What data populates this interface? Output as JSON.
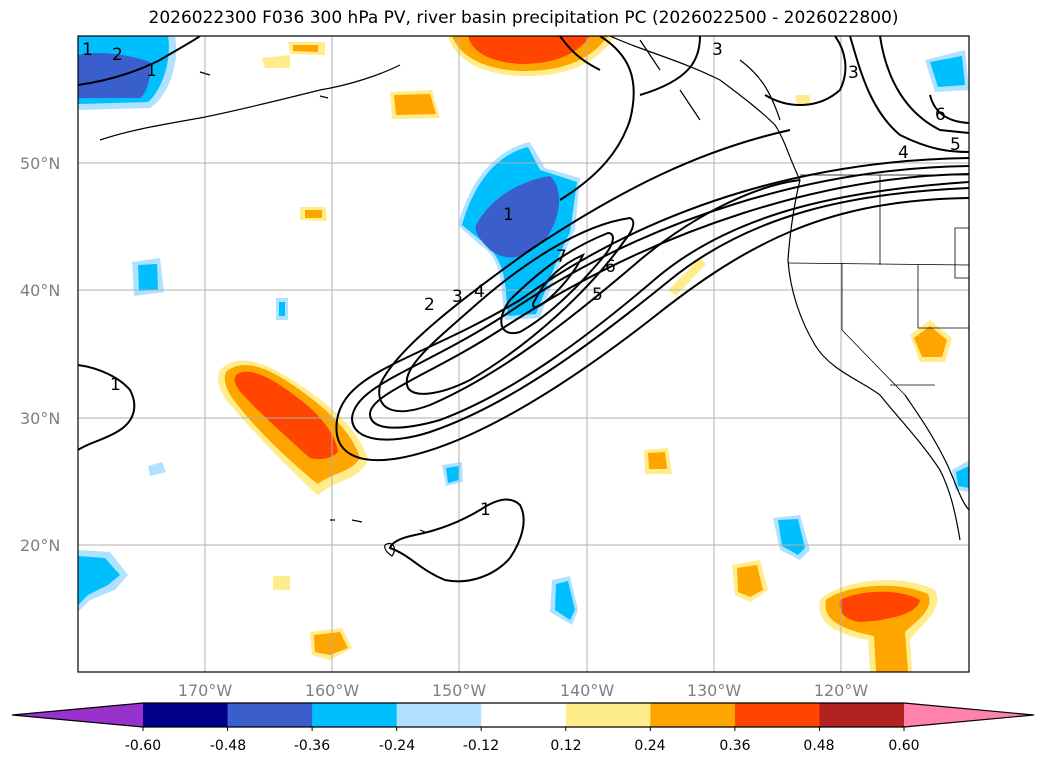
{
  "title": "2026022300 F036 300 hPa PV, river basin precipitation PC (2026022500 - 2026022800)",
  "lat_labels": [
    "50°N",
    "40°N",
    "30°N",
    "20°N"
  ],
  "lon_labels": [
    "170°W",
    "160°W",
    "150°W",
    "140°W",
    "130°W",
    "120°W"
  ],
  "contour_labels": [
    "1",
    "2",
    "3",
    "1",
    "2",
    "3",
    "4",
    "5",
    "6",
    "7",
    "1",
    "1",
    "4",
    "5",
    "6",
    "3",
    "1"
  ],
  "colorbar": {
    "ticks": [
      "-0.60",
      "-0.48",
      "-0.36",
      "-0.24",
      "-0.12",
      "0.12",
      "0.24",
      "0.36",
      "0.48",
      "0.60"
    ],
    "colors": [
      "#9932CC",
      "#00008B",
      "#3A5FCD",
      "#00BFFF",
      "#B0E2FF",
      "#FFFFFF",
      "#FFEC8B",
      "#FFA500",
      "#FF4500",
      "#B22222",
      "#FF82AB"
    ]
  }
}
